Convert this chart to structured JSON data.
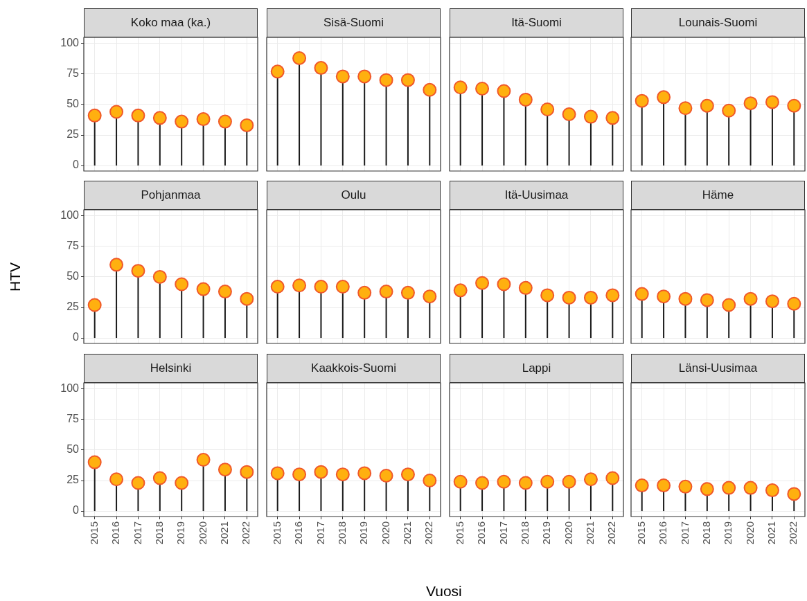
{
  "chart_data": [
    {
      "type": "lollipop",
      "title": "Koko maa (ka.)",
      "categories": [
        "2015",
        "2016",
        "2017",
        "2018",
        "2019",
        "2020",
        "2021",
        "2022"
      ],
      "values": [
        41,
        44,
        41,
        39,
        36,
        38,
        36,
        33
      ],
      "color": "#ffb00f",
      "marker": "circle",
      "ylim": [
        -4.5,
        105
      ],
      "yticks": [
        0,
        25,
        50,
        75,
        100
      ],
      "grid": true,
      "tick_labels": "y"
    },
    {
      "type": "lollipop",
      "title": "Sisä-Suomi",
      "categories": [
        "2015",
        "2016",
        "2017",
        "2018",
        "2019",
        "2020",
        "2021",
        "2022"
      ],
      "values": [
        77,
        88,
        80,
        73,
        73,
        70,
        70,
        62
      ],
      "color": "#ffb00f",
      "marker": "circle",
      "ylim": [
        -4.5,
        105
      ],
      "yticks": [
        0,
        25,
        50,
        75,
        100
      ],
      "grid": true,
      "tick_labels": false
    },
    {
      "type": "lollipop",
      "title": "Itä-Suomi",
      "categories": [
        "2015",
        "2016",
        "2017",
        "2018",
        "2019",
        "2020",
        "2021",
        "2022"
      ],
      "values": [
        64,
        63,
        61,
        54,
        46,
        42,
        40,
        39
      ],
      "color": "#ffb00f",
      "marker": "circle",
      "ylim": [
        -4.5,
        105
      ],
      "yticks": [
        0,
        25,
        50,
        75,
        100
      ],
      "grid": true,
      "tick_labels": false
    },
    {
      "type": "lollipop",
      "title": "Lounais-Suomi",
      "categories": [
        "2015",
        "2016",
        "2017",
        "2018",
        "2019",
        "2020",
        "2021",
        "2022"
      ],
      "values": [
        53,
        56,
        47,
        49,
        45,
        51,
        52,
        49
      ],
      "color": "#ffb00f",
      "marker": "circle",
      "ylim": [
        -4.5,
        105
      ],
      "yticks": [
        0,
        25,
        50,
        75,
        100
      ],
      "grid": true,
      "tick_labels": false
    },
    {
      "type": "lollipop",
      "title": "Pohjanmaa",
      "ylabel": "HTV",
      "categories": [
        "2015",
        "2016",
        "2017",
        "2018",
        "2019",
        "2020",
        "2021",
        "2022"
      ],
      "values": [
        27,
        60,
        55,
        50,
        44,
        40,
        38,
        32
      ],
      "color": "#ffb00f",
      "marker": "circle",
      "ylim": [
        -4.5,
        105
      ],
      "yticks": [
        0,
        25,
        50,
        75,
        100
      ],
      "grid": true,
      "tick_labels": "y"
    },
    {
      "type": "lollipop",
      "title": "Oulu",
      "categories": [
        "2015",
        "2016",
        "2017",
        "2018",
        "2019",
        "2020",
        "2021",
        "2022"
      ],
      "values": [
        42,
        43,
        42,
        42,
        37,
        38,
        37,
        34
      ],
      "color": "#ffb00f",
      "marker": "circle",
      "ylim": [
        -4.5,
        105
      ],
      "yticks": [
        0,
        25,
        50,
        75,
        100
      ],
      "grid": true,
      "tick_labels": false
    },
    {
      "type": "lollipop",
      "title": "Itä-Uusimaa",
      "categories": [
        "2015",
        "2016",
        "2017",
        "2018",
        "2019",
        "2020",
        "2021",
        "2022"
      ],
      "values": [
        39,
        45,
        44,
        41,
        35,
        33,
        33,
        35
      ],
      "color": "#ffb00f",
      "marker": "circle",
      "ylim": [
        -4.5,
        105
      ],
      "yticks": [
        0,
        25,
        50,
        75,
        100
      ],
      "grid": true,
      "tick_labels": false
    },
    {
      "type": "lollipop",
      "title": "Häme",
      "categories": [
        "2015",
        "2016",
        "2017",
        "2018",
        "2019",
        "2020",
        "2021",
        "2022"
      ],
      "values": [
        36,
        34,
        32,
        31,
        27,
        32,
        30,
        28
      ],
      "color": "#ffb00f",
      "marker": "circle",
      "ylim": [
        -4.5,
        105
      ],
      "yticks": [
        0,
        25,
        50,
        75,
        100
      ],
      "grid": true,
      "tick_labels": false
    },
    {
      "type": "lollipop",
      "title": "Helsinki",
      "categories": [
        "2015",
        "2016",
        "2017",
        "2018",
        "2019",
        "2020",
        "2021",
        "2022"
      ],
      "values": [
        40,
        26,
        23,
        27,
        23,
        42,
        34,
        32
      ],
      "color": "#ffb00f",
      "marker": "circle",
      "ylim": [
        -4.5,
        105
      ],
      "yticks": [
        0,
        25,
        50,
        75,
        100
      ],
      "grid": true
    },
    {
      "type": "lollipop",
      "title": "Kaakkois-Suomi",
      "xlabel": "Vuosi",
      "categories": [
        "2015",
        "2016",
        "2017",
        "2018",
        "2019",
        "2020",
        "2021",
        "2022"
      ],
      "values": [
        31,
        30,
        32,
        30,
        31,
        29,
        30,
        25
      ],
      "color": "#ffb00f",
      "marker": "circle",
      "ylim": [
        -4.5,
        105
      ],
      "yticks": [
        0,
        25,
        50,
        75,
        100
      ],
      "grid": true,
      "tick_labels": "x"
    },
    {
      "type": "lollipop",
      "title": "Lappi",
      "categories": [
        "2015",
        "2016",
        "2017",
        "2018",
        "2019",
        "2020",
        "2021",
        "2022"
      ],
      "values": [
        24,
        23,
        24,
        23,
        24,
        24,
        26,
        27
      ],
      "color": "#ffb00f",
      "marker": "circle",
      "ylim": [
        -4.5,
        105
      ],
      "yticks": [
        0,
        25,
        50,
        75,
        100
      ],
      "grid": true,
      "tick_labels": "x"
    },
    {
      "type": "lollipop",
      "title": "Länsi-Uusimaa",
      "categories": [
        "2015",
        "2016",
        "2017",
        "2018",
        "2019",
        "2020",
        "2021",
        "2022"
      ],
      "values": [
        21,
        21,
        20,
        18,
        19,
        19,
        17,
        14
      ],
      "color": "#ffb00f",
      "marker": "circle",
      "ylim": [
        -4.5,
        105
      ],
      "yticks": [
        0,
        25,
        50,
        75,
        100
      ],
      "grid": true,
      "tick_labels": "x"
    }
  ]
}
